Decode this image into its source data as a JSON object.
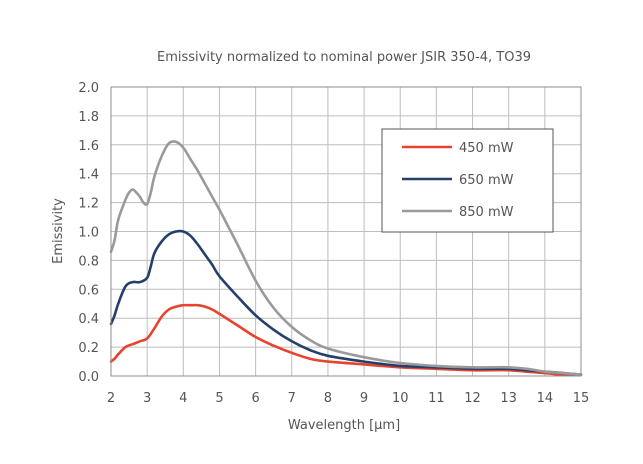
{
  "chart_data": {
    "type": "line",
    "title": "Emissivity normalized to nominal power JSIR 350-4, TO39",
    "xlabel": "Wavelength [µm]",
    "ylabel": "Emissivity",
    "xlim": [
      2,
      15
    ],
    "ylim": [
      0.0,
      2.0
    ],
    "x_ticks": [
      "2",
      "3",
      "4",
      "5",
      "6",
      "7",
      "8",
      "9",
      "10",
      "11",
      "12",
      "13",
      "14",
      "15"
    ],
    "y_ticks": [
      "0.0",
      "0.2",
      "0.4",
      "0.6",
      "0.8",
      "1.0",
      "1.2",
      "1.4",
      "1.6",
      "1.8",
      "2.0"
    ],
    "grid": true,
    "legend_position": "top-right",
    "series": [
      {
        "name": "450 mW",
        "color": "#e8432e",
        "x": [
          2.0,
          2.1,
          2.2,
          2.4,
          2.6,
          2.8,
          3.0,
          3.2,
          3.4,
          3.6,
          3.8,
          4.0,
          4.2,
          4.4,
          4.6,
          4.8,
          5.0,
          5.5,
          6.0,
          6.5,
          7.0,
          7.5,
          8.0,
          9.0,
          10.0,
          11.0,
          12.0,
          12.5,
          13.0,
          13.5,
          14.0,
          14.5,
          15.0
        ],
        "y": [
          0.1,
          0.12,
          0.15,
          0.2,
          0.22,
          0.24,
          0.26,
          0.33,
          0.41,
          0.46,
          0.48,
          0.49,
          0.49,
          0.49,
          0.48,
          0.46,
          0.43,
          0.35,
          0.27,
          0.21,
          0.16,
          0.12,
          0.1,
          0.08,
          0.06,
          0.05,
          0.04,
          0.04,
          0.04,
          0.03,
          0.02,
          0.01,
          0.01
        ]
      },
      {
        "name": "650 mW",
        "color": "#24406a",
        "x": [
          2.0,
          2.1,
          2.2,
          2.4,
          2.6,
          2.8,
          3.0,
          3.1,
          3.2,
          3.4,
          3.6,
          3.8,
          4.0,
          4.2,
          4.4,
          4.6,
          4.8,
          5.0,
          5.5,
          6.0,
          6.5,
          7.0,
          7.5,
          8.0,
          9.0,
          10.0,
          11.0,
          12.0,
          12.5,
          13.0,
          13.5,
          14.0,
          14.5,
          15.0
        ],
        "y": [
          0.36,
          0.42,
          0.5,
          0.62,
          0.65,
          0.65,
          0.68,
          0.76,
          0.85,
          0.93,
          0.98,
          1.0,
          1.0,
          0.97,
          0.91,
          0.84,
          0.77,
          0.69,
          0.55,
          0.42,
          0.32,
          0.24,
          0.18,
          0.14,
          0.1,
          0.07,
          0.06,
          0.05,
          0.05,
          0.05,
          0.04,
          0.03,
          0.02,
          0.01
        ]
      },
      {
        "name": "850 mW",
        "color": "#9a9a9a",
        "x": [
          2.0,
          2.1,
          2.2,
          2.4,
          2.5,
          2.6,
          2.7,
          2.8,
          2.9,
          3.0,
          3.1,
          3.2,
          3.4,
          3.6,
          3.8,
          4.0,
          4.2,
          4.4,
          4.6,
          4.8,
          5.0,
          5.5,
          6.0,
          6.5,
          7.0,
          7.5,
          8.0,
          9.0,
          10.0,
          11.0,
          12.0,
          12.5,
          13.0,
          13.5,
          14.0,
          14.5,
          15.0
        ],
        "y": [
          0.86,
          0.94,
          1.08,
          1.22,
          1.27,
          1.29,
          1.27,
          1.24,
          1.2,
          1.19,
          1.27,
          1.38,
          1.52,
          1.61,
          1.62,
          1.58,
          1.5,
          1.42,
          1.33,
          1.24,
          1.15,
          0.91,
          0.66,
          0.47,
          0.34,
          0.25,
          0.19,
          0.13,
          0.09,
          0.07,
          0.06,
          0.06,
          0.06,
          0.05,
          0.03,
          0.02,
          0.01
        ]
      }
    ]
  }
}
